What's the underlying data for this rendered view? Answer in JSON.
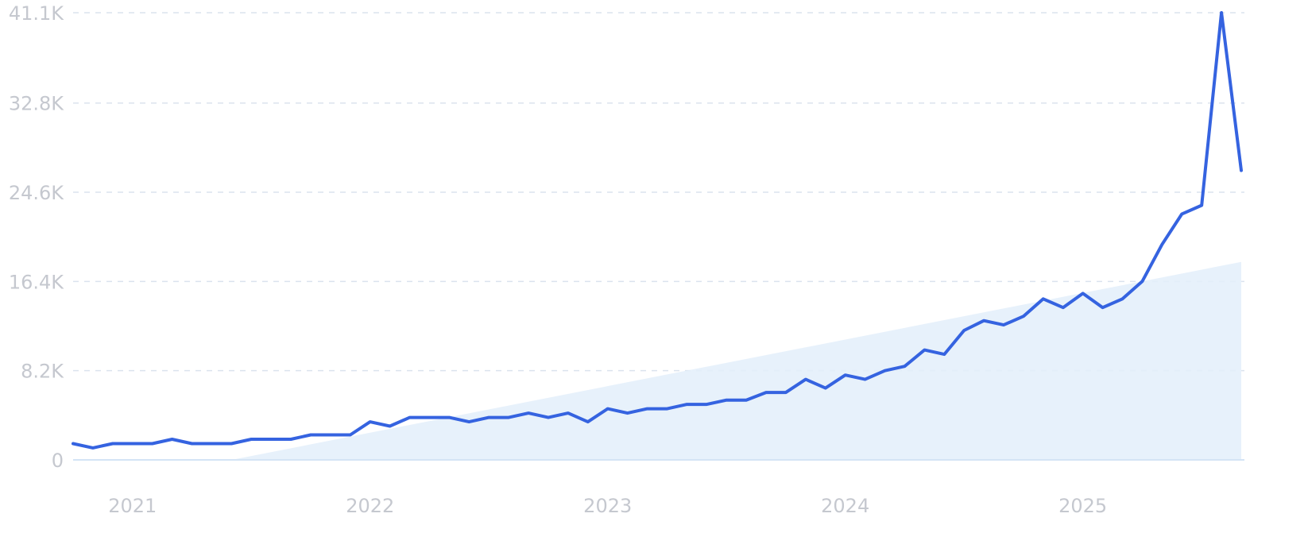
{
  "chart_data": {
    "type": "line",
    "title": "",
    "xlabel": "",
    "ylabel": "",
    "grid": true,
    "legend": "none",
    "ylim": [
      0,
      41100
    ],
    "y_ticks": [
      {
        "value": 0,
        "label": "0"
      },
      {
        "value": 8200,
        "label": "8.2K"
      },
      {
        "value": 16400,
        "label": "16.4K"
      },
      {
        "value": 24600,
        "label": "24.6K"
      },
      {
        "value": 32800,
        "label": "32.8K"
      },
      {
        "value": 41100,
        "label": "41.1K"
      }
    ],
    "x_range": [
      "2020-10",
      "2025-09"
    ],
    "x_ticks": [
      {
        "value": "2021-01",
        "label": "2021"
      },
      {
        "value": "2022-01",
        "label": "2022"
      },
      {
        "value": "2023-01",
        "label": "2023"
      },
      {
        "value": "2024-01",
        "label": "2024"
      },
      {
        "value": "2025-01",
        "label": "2025"
      }
    ],
    "colors": {
      "line": "#3563e0",
      "trend_fill": "#e3eefa",
      "grid": "#dbe3ee",
      "tick_text": "#c5c8cf"
    },
    "trend": {
      "start": {
        "x": "2021-06",
        "y": 0
      },
      "end": {
        "x": "2025-09",
        "y": 18200
      }
    },
    "series": [
      {
        "x": [
          "2020-10",
          "2020-11",
          "2020-12",
          "2021-01",
          "2021-02",
          "2021-03",
          "2021-04",
          "2021-05",
          "2021-06",
          "2021-07",
          "2021-08",
          "2021-09",
          "2021-10",
          "2021-11",
          "2021-12",
          "2022-01",
          "2022-02",
          "2022-03",
          "2022-04",
          "2022-05",
          "2022-06",
          "2022-07",
          "2022-08",
          "2022-09",
          "2022-10",
          "2022-11",
          "2022-12",
          "2023-01",
          "2023-02",
          "2023-03",
          "2023-04",
          "2023-05",
          "2023-06",
          "2023-07",
          "2023-08",
          "2023-09",
          "2023-10",
          "2023-11",
          "2023-12",
          "2024-01",
          "2024-02",
          "2024-03",
          "2024-04",
          "2024-05",
          "2024-06",
          "2024-07",
          "2024-08",
          "2024-09",
          "2024-10",
          "2024-11",
          "2024-12",
          "2025-01",
          "2025-02",
          "2025-03",
          "2025-04",
          "2025-05",
          "2025-06",
          "2025-07",
          "2025-08",
          "2025-09"
        ],
        "values": [
          1500,
          1100,
          1500,
          1500,
          1500,
          1900,
          1500,
          1500,
          1500,
          1900,
          1900,
          1900,
          2300,
          2300,
          2300,
          3500,
          3100,
          3900,
          3900,
          3900,
          3500,
          3900,
          3900,
          4300,
          3900,
          4300,
          3500,
          4700,
          4300,
          4700,
          4700,
          5100,
          5100,
          5500,
          5500,
          6200,
          6200,
          7400,
          6600,
          7800,
          7400,
          8200,
          8600,
          10100,
          9700,
          11900,
          12800,
          12400,
          13200,
          14800,
          14000,
          15300,
          14000,
          14800,
          16400,
          19800,
          22600,
          23400,
          41100,
          26600
        ]
      }
    ]
  }
}
